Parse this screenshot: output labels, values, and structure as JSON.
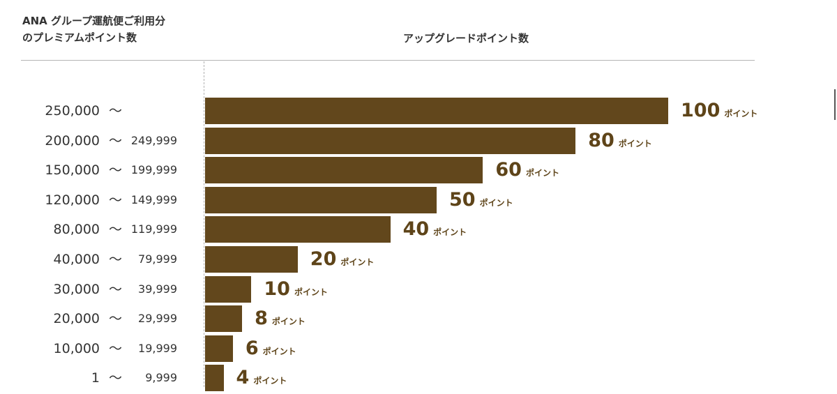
{
  "header": {
    "left_line1": "ANA グループ運航便ご利用分",
    "left_line2": "のプレミアムポイント数",
    "right": "アップグレードポイント数"
  },
  "chart_data": {
    "type": "bar",
    "orientation": "horizontal",
    "xlabel": "アップグレードポイント数",
    "ylabel": "ANA グループ運航便ご利用分のプレミアムポイント数",
    "xlim": [
      0,
      100
    ],
    "grid": false,
    "unit_label": "ポイント",
    "tilde": "～",
    "categories": [
      {
        "from": "250,000",
        "to": ""
      },
      {
        "from": "200,000",
        "to": "249,999"
      },
      {
        "from": "150,000",
        "to": "199,999"
      },
      {
        "from": "120,000",
        "to": "149,999"
      },
      {
        "from": "80,000",
        "to": "119,999"
      },
      {
        "from": "40,000",
        "to": "79,999"
      },
      {
        "from": "30,000",
        "to": "39,999"
      },
      {
        "from": "20,000",
        "to": "29,999"
      },
      {
        "from": "10,000",
        "to": "19,999"
      },
      {
        "from": "1",
        "to": "9,999"
      }
    ],
    "values": [
      100,
      80,
      60,
      50,
      40,
      20,
      10,
      8,
      6,
      4
    ],
    "bar_color": "#62471c",
    "value_color": "#5e4419"
  }
}
